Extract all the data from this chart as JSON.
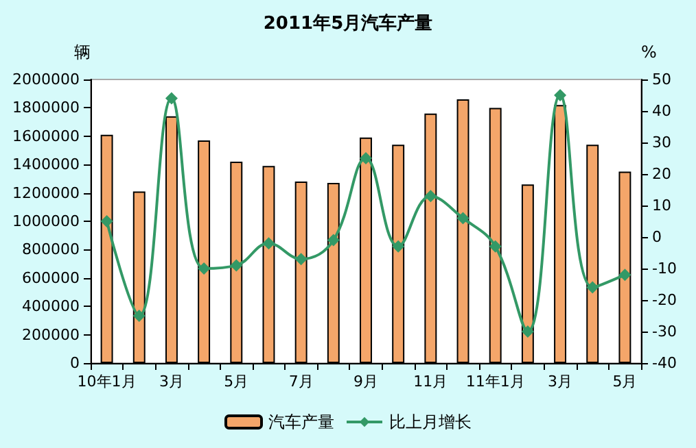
{
  "chart_data": {
    "type": "bar",
    "title": "2011年5月汽车产量",
    "ylabel": "辆",
    "y2label": "%",
    "categories": [
      "10年1月",
      null,
      "3月",
      null,
      "5月",
      null,
      "7月",
      null,
      "9月",
      null,
      "11月",
      null,
      "11年1月",
      null,
      "3月",
      null,
      "5月"
    ],
    "series": [
      {
        "name": "汽车产量",
        "color": "#f4a66a",
        "values": [
          1610000,
          1210000,
          1740000,
          1570000,
          1420000,
          1390000,
          1280000,
          1270000,
          1590000,
          1540000,
          1760000,
          1860000,
          1800000,
          1260000,
          1820000,
          1540000,
          1350000
        ]
      },
      {
        "name": "比上月增长",
        "type": "line",
        "axis": "y2",
        "color": "#339966",
        "marker": "diamond",
        "values": [
          5,
          -25,
          44,
          -10,
          -9,
          -2,
          -7,
          -1,
          25,
          -3,
          13,
          6,
          -3,
          -30,
          45,
          -16,
          -12
        ]
      }
    ],
    "ylim": [
      0,
      2000000
    ],
    "yticks": [
      0,
      200000,
      400000,
      600000,
      800000,
      1000000,
      1200000,
      1400000,
      1600000,
      1800000,
      2000000
    ],
    "y2lim": [
      -40,
      50
    ],
    "y2ticks": [
      -40,
      -30,
      -20,
      -10,
      0,
      10,
      20,
      30,
      40,
      50
    ],
    "legend": "bottom",
    "grid": false
  }
}
